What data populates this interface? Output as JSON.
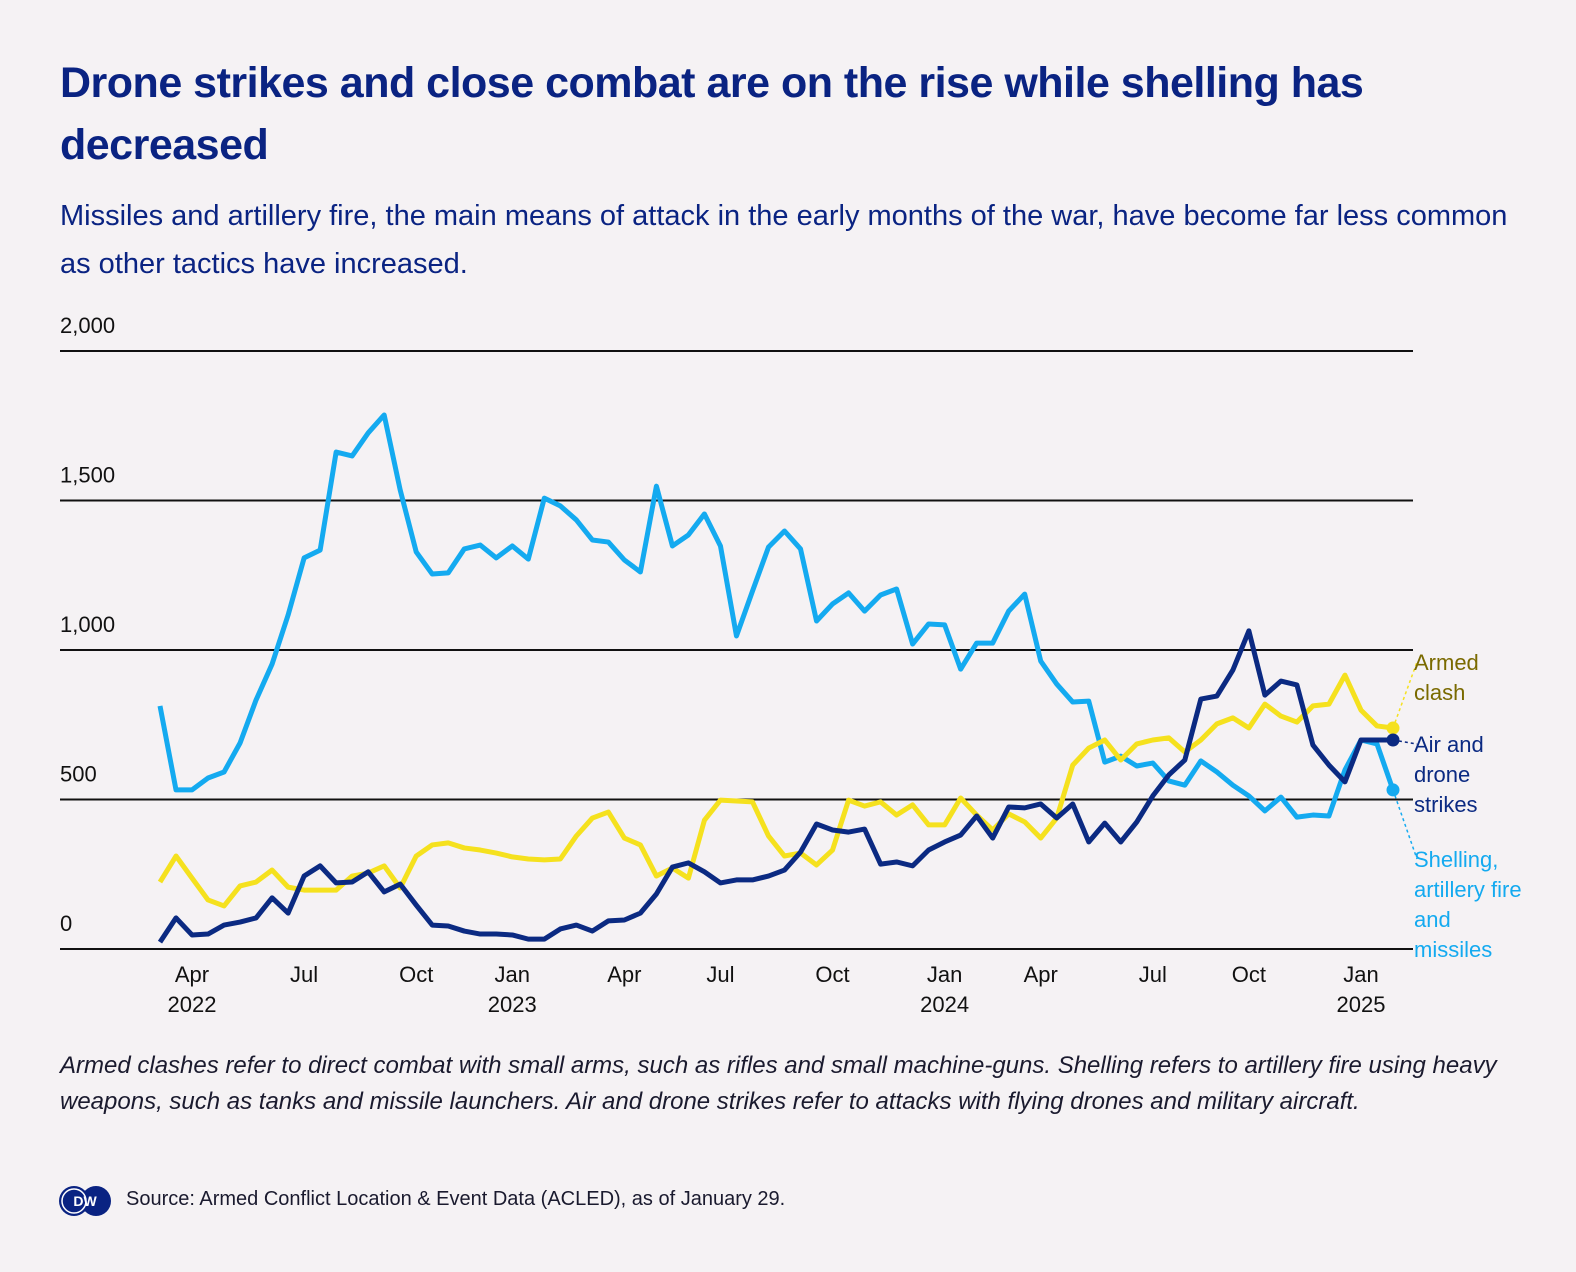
{
  "chart_data": {
    "type": "line",
    "title": "Drone strikes and close combat are on the rise while shelling has decreased",
    "subtitle": "Missiles and artillery fire, the main means of attack in the early months of the war, have become far less common as other tactics have increased.",
    "note": "Armed clashes refer to direct combat with small arms, such as rifles and small machine-guns. Shelling refers to artillery fire using heavy weapons, such as tanks and missile launchers. Air and drone strikes refer to attacks with flying drones and military aircraft.",
    "source": "Source: Armed Conflict Location & Event Data (ACLED), as of January 29.",
    "categories": [
      null,
      null,
      "Apr\n2022",
      null,
      null,
      null,
      null,
      null,
      null,
      "Jul",
      null,
      null,
      null,
      null,
      null,
      null,
      "Oct",
      null,
      null,
      null,
      null,
      null,
      "Jan\n2023",
      null,
      null,
      null,
      null,
      null,
      null,
      "Apr",
      null,
      null,
      null,
      null,
      null,
      "Jul",
      null,
      null,
      null,
      null,
      null,
      null,
      "Oct",
      null,
      null,
      null,
      null,
      null,
      null,
      "Jan\n2024",
      null,
      null,
      null,
      null,
      null,
      "Apr",
      null,
      null,
      null,
      null,
      null,
      null,
      "Jul",
      null,
      null,
      null,
      null,
      null,
      "Oct",
      null,
      null,
      null,
      null,
      null,
      null,
      "Jan\n2025",
      null,
      null
    ],
    "ylim": [
      0,
      2000
    ],
    "yticks": [
      0,
      500,
      {
        "value": 1000,
        "label": "1,000"
      },
      {
        "value": 1500,
        "label": "1,500"
      },
      {
        "value": 2000,
        "label": "2,000"
      }
    ],
    "grid": true,
    "series": [
      {
        "name": "Shelling, artillery fire and missiles",
        "color": "#14aaf0",
        "values": [
          813,
          532,
          532,
          572,
          592,
          689,
          833,
          953,
          1117,
          1308,
          1334,
          1662,
          1649,
          1726,
          1786,
          1535,
          1328,
          1254,
          1258,
          1338,
          1351,
          1308,
          1348,
          1304,
          1508,
          1482,
          1435,
          1368,
          1361,
          1301,
          1261,
          1548,
          1348,
          1385,
          1455,
          1348,
          1047,
          1197,
          1344,
          1398,
          1338,
          1097,
          1154,
          1191,
          1130,
          1184,
          1204,
          1020,
          1087,
          1084,
          936,
          1023,
          1023,
          1130,
          1187,
          963,
          886,
          826,
          829,
          625,
          645,
          612,
          622,
          562,
          548,
          629,
          592,
          548,
          512,
          462,
          508,
          441,
          448,
          445,
          599,
          699,
          686,
          532
        ]
      },
      {
        "name": "Armed clash",
        "color": "#f5e11e",
        "values": [
          224,
          311,
          237,
          164,
          144,
          211,
          224,
          264,
          207,
          197,
          197,
          197,
          244,
          254,
          278,
          204,
          311,
          348,
          355,
          338,
          331,
          321,
          308,
          301,
          298,
          301,
          378,
          438,
          458,
          371,
          348,
          244,
          271,
          237,
          431,
          498,
          495,
          492,
          378,
          311,
          321,
          281,
          331,
          498,
          478,
          492,
          448,
          482,
          415,
          415,
          505,
          448,
          398,
          452,
          425,
          371,
          438,
          615,
          672,
          699,
          632,
          686,
          699,
          706,
          659,
          699,
          753,
          773,
          739,
          819,
          779,
          759,
          813,
          819,
          916,
          799,
          746,
          739
        ]
      },
      {
        "name": "Air and drone strikes",
        "color": "#0b2a82",
        "values": [
          23,
          104,
          47,
          50,
          80,
          90,
          104,
          171,
          120,
          244,
          278,
          221,
          224,
          258,
          191,
          217,
          147,
          80,
          77,
          60,
          50,
          50,
          47,
          33,
          33,
          67,
          80,
          60,
          94,
          97,
          120,
          184,
          274,
          288,
          258,
          221,
          231,
          231,
          244,
          264,
          324,
          418,
          398,
          391,
          401,
          284,
          291,
          278,
          331,
          358,
          381,
          445,
          371,
          475,
          472,
          485,
          438,
          485,
          358,
          421,
          358,
          425,
          512,
          582,
          632,
          836,
          846,
          933,
          1064,
          849,
          896,
          883,
          682,
          615,
          559,
          699,
          699,
          699
        ]
      }
    ]
  }
}
